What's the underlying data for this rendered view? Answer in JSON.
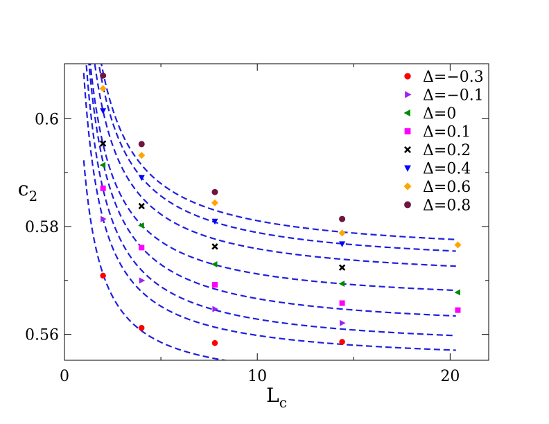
{
  "chart_data": {
    "type": "scatter",
    "xlabel": "L",
    "xlabel_sub": "c",
    "ylabel": "c",
    "ylabel_sub": "2",
    "xlim": [
      0,
      22
    ],
    "ylim": [
      0.5552,
      0.6102
    ],
    "xticks": [
      0,
      10,
      20
    ],
    "xtick_labels": [
      "0",
      "10",
      "20"
    ],
    "xminor": [
      5,
      15
    ],
    "yticks": [
      0.56,
      0.58,
      0.6
    ],
    "ytick_labels": [
      "0.56",
      "0.58",
      "0.6"
    ],
    "yminor": [
      0.57,
      0.59
    ],
    "legend_position": "top-right",
    "fit_style": "dashed",
    "fit_color": "#1f1fe0",
    "fit_x_range": [
      1,
      20.3
    ],
    "series": [
      {
        "name": "Δ=−0.3",
        "marker": "circle",
        "color": "#ff0000",
        "x": [
          2,
          4,
          7.8,
          14.4
        ],
        "y": [
          0.5709,
          0.5612,
          0.5584,
          0.5586
        ],
        "fit": [
          0.5501,
          0.0422
        ]
      },
      {
        "name": "Δ=−0.1",
        "marker": "triangle-right",
        "color": "#a020f0",
        "x": [
          2,
          4,
          7.8,
          14.4
        ],
        "y": [
          0.5814,
          0.57,
          0.5647,
          0.5621
        ],
        "fit": [
          0.5544,
          0.0541
        ]
      },
      {
        "name": "Δ=0",
        "marker": "triangle-left",
        "color": "#008b00",
        "x": [
          2,
          4,
          7.8,
          14.4,
          20.4
        ],
        "y": [
          0.5914,
          0.5802,
          0.573,
          0.5694,
          0.5678
        ],
        "fit": [
          0.5603,
          0.0633
        ]
      },
      {
        "name": "Δ=0.1",
        "marker": "square",
        "color": "#ff00ff",
        "x": [
          2,
          4,
          7.8,
          14.4,
          20.4
        ],
        "y": [
          0.5871,
          0.5761,
          0.5692,
          0.5658,
          0.5645
        ],
        "fit": [
          0.5568,
          0.0603
        ]
      },
      {
        "name": "Δ=0.2",
        "marker": "x",
        "color": "#000000",
        "x": [
          2,
          4,
          7.8,
          14.4
        ],
        "y": [
          0.5954,
          0.5838,
          0.5763,
          0.5724
        ],
        "fit": [
          0.5652,
          0.0602
        ]
      },
      {
        "name": "Δ=0.4",
        "marker": "triangle-down",
        "color": "#0000ff",
        "x": [
          2,
          4,
          7.8,
          14.4
        ],
        "y": [
          0.6015,
          0.5891,
          0.581,
          0.5768
        ],
        "fit": [
          0.5695,
          0.0639
        ]
      },
      {
        "name": "Δ=0.6",
        "marker": "diamond",
        "color": "#ffa500",
        "x": [
          2,
          4,
          7.8,
          14.4,
          20.4
        ],
        "y": [
          0.6056,
          0.5932,
          0.5844,
          0.5788,
          0.5766
        ],
        "fit": [
          0.5721,
          0.0679
        ]
      },
      {
        "name": "Δ=0.8",
        "marker": "hexagon",
        "color": "#6e1540",
        "x": [
          2,
          4,
          7.8,
          14.4
        ],
        "y": [
          0.608,
          0.5953,
          0.5864,
          0.5814
        ],
        "fit": [
          0.5742,
          0.0689
        ]
      }
    ]
  }
}
